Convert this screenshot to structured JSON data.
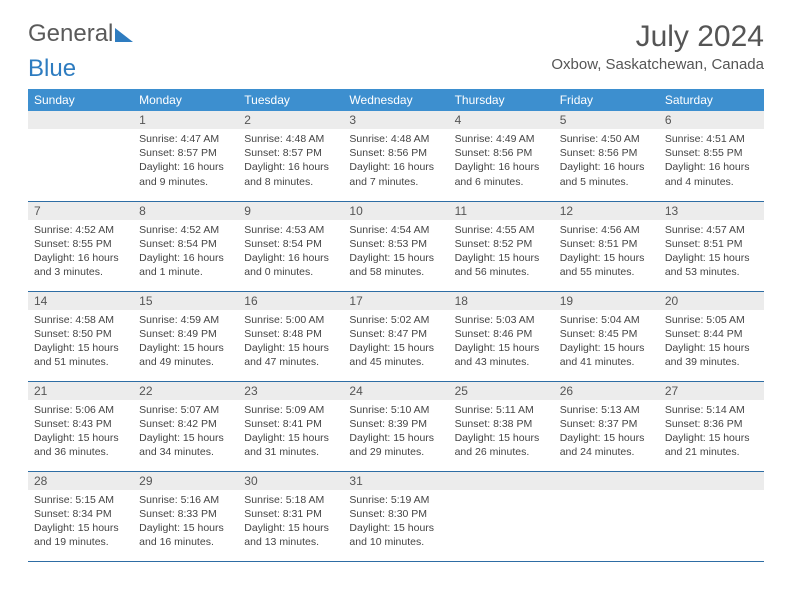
{
  "logo": {
    "text1": "General",
    "text2": "Blue"
  },
  "title": "July 2024",
  "location": "Oxbow, Saskatchewan, Canada",
  "colors": {
    "header_bg": "#3d8fcf",
    "header_text": "#ffffff",
    "daynum_bg": "#ececec",
    "border": "#2e6da4",
    "logo_blue": "#2e7cc0",
    "text": "#444444"
  },
  "weekdays": [
    "Sunday",
    "Monday",
    "Tuesday",
    "Wednesday",
    "Thursday",
    "Friday",
    "Saturday"
  ],
  "start_offset": 1,
  "days": [
    {
      "n": 1,
      "sunrise": "4:47 AM",
      "sunset": "8:57 PM",
      "daylight": "16 hours and 9 minutes."
    },
    {
      "n": 2,
      "sunrise": "4:48 AM",
      "sunset": "8:57 PM",
      "daylight": "16 hours and 8 minutes."
    },
    {
      "n": 3,
      "sunrise": "4:48 AM",
      "sunset": "8:56 PM",
      "daylight": "16 hours and 7 minutes."
    },
    {
      "n": 4,
      "sunrise": "4:49 AM",
      "sunset": "8:56 PM",
      "daylight": "16 hours and 6 minutes."
    },
    {
      "n": 5,
      "sunrise": "4:50 AM",
      "sunset": "8:56 PM",
      "daylight": "16 hours and 5 minutes."
    },
    {
      "n": 6,
      "sunrise": "4:51 AM",
      "sunset": "8:55 PM",
      "daylight": "16 hours and 4 minutes."
    },
    {
      "n": 7,
      "sunrise": "4:52 AM",
      "sunset": "8:55 PM",
      "daylight": "16 hours and 3 minutes."
    },
    {
      "n": 8,
      "sunrise": "4:52 AM",
      "sunset": "8:54 PM",
      "daylight": "16 hours and 1 minute."
    },
    {
      "n": 9,
      "sunrise": "4:53 AM",
      "sunset": "8:54 PM",
      "daylight": "16 hours and 0 minutes."
    },
    {
      "n": 10,
      "sunrise": "4:54 AM",
      "sunset": "8:53 PM",
      "daylight": "15 hours and 58 minutes."
    },
    {
      "n": 11,
      "sunrise": "4:55 AM",
      "sunset": "8:52 PM",
      "daylight": "15 hours and 56 minutes."
    },
    {
      "n": 12,
      "sunrise": "4:56 AM",
      "sunset": "8:51 PM",
      "daylight": "15 hours and 55 minutes."
    },
    {
      "n": 13,
      "sunrise": "4:57 AM",
      "sunset": "8:51 PM",
      "daylight": "15 hours and 53 minutes."
    },
    {
      "n": 14,
      "sunrise": "4:58 AM",
      "sunset": "8:50 PM",
      "daylight": "15 hours and 51 minutes."
    },
    {
      "n": 15,
      "sunrise": "4:59 AM",
      "sunset": "8:49 PM",
      "daylight": "15 hours and 49 minutes."
    },
    {
      "n": 16,
      "sunrise": "5:00 AM",
      "sunset": "8:48 PM",
      "daylight": "15 hours and 47 minutes."
    },
    {
      "n": 17,
      "sunrise": "5:02 AM",
      "sunset": "8:47 PM",
      "daylight": "15 hours and 45 minutes."
    },
    {
      "n": 18,
      "sunrise": "5:03 AM",
      "sunset": "8:46 PM",
      "daylight": "15 hours and 43 minutes."
    },
    {
      "n": 19,
      "sunrise": "5:04 AM",
      "sunset": "8:45 PM",
      "daylight": "15 hours and 41 minutes."
    },
    {
      "n": 20,
      "sunrise": "5:05 AM",
      "sunset": "8:44 PM",
      "daylight": "15 hours and 39 minutes."
    },
    {
      "n": 21,
      "sunrise": "5:06 AM",
      "sunset": "8:43 PM",
      "daylight": "15 hours and 36 minutes."
    },
    {
      "n": 22,
      "sunrise": "5:07 AM",
      "sunset": "8:42 PM",
      "daylight": "15 hours and 34 minutes."
    },
    {
      "n": 23,
      "sunrise": "5:09 AM",
      "sunset": "8:41 PM",
      "daylight": "15 hours and 31 minutes."
    },
    {
      "n": 24,
      "sunrise": "5:10 AM",
      "sunset": "8:39 PM",
      "daylight": "15 hours and 29 minutes."
    },
    {
      "n": 25,
      "sunrise": "5:11 AM",
      "sunset": "8:38 PM",
      "daylight": "15 hours and 26 minutes."
    },
    {
      "n": 26,
      "sunrise": "5:13 AM",
      "sunset": "8:37 PM",
      "daylight": "15 hours and 24 minutes."
    },
    {
      "n": 27,
      "sunrise": "5:14 AM",
      "sunset": "8:36 PM",
      "daylight": "15 hours and 21 minutes."
    },
    {
      "n": 28,
      "sunrise": "5:15 AM",
      "sunset": "8:34 PM",
      "daylight": "15 hours and 19 minutes."
    },
    {
      "n": 29,
      "sunrise": "5:16 AM",
      "sunset": "8:33 PM",
      "daylight": "15 hours and 16 minutes."
    },
    {
      "n": 30,
      "sunrise": "5:18 AM",
      "sunset": "8:31 PM",
      "daylight": "15 hours and 13 minutes."
    },
    {
      "n": 31,
      "sunrise": "5:19 AM",
      "sunset": "8:30 PM",
      "daylight": "15 hours and 10 minutes."
    }
  ],
  "labels": {
    "sunrise": "Sunrise:",
    "sunset": "Sunset:",
    "daylight": "Daylight:"
  }
}
